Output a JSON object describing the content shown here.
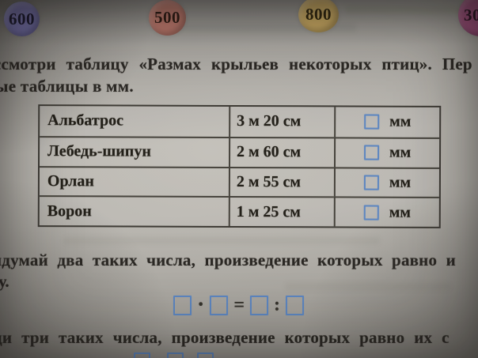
{
  "answer_circles": [
    {
      "label": "600",
      "fill": "#6e6aa2"
    },
    {
      "label": "500",
      "fill": "#c07a6e"
    },
    {
      "label": "800",
      "fill": "#cfae64"
    },
    {
      "label": "30",
      "fill": "#a45080"
    }
  ],
  "intro": {
    "line1": "ссмотри таблицу «Размах крыльев некоторых птиц». Пер",
    "line2": "ые таблицы в мм."
  },
  "wingspan_table": {
    "rows": [
      {
        "bird": "Альбатрос",
        "wingspan": "3 м 20 см",
        "unit": "мм"
      },
      {
        "bird": "Лебедь-шипун",
        "wingspan": "2 м 60 см",
        "unit": "мм"
      },
      {
        "bird": "Орлан",
        "wingspan": "2 м 55 см",
        "unit": "мм"
      },
      {
        "bird": "Ворон",
        "wingspan": "1 м 25 см",
        "unit": "мм"
      }
    ]
  },
  "task_two_numbers": {
    "line1": "идумай два таких числа, произведение которых равно и",
    "line2": "у.",
    "equation": {
      "multiply_sign": "·",
      "equals_sign": "=",
      "divide_sign": ":"
    }
  },
  "task_three_numbers": {
    "line1": "ди три таких числа, произведение которых равно их с"
  },
  "colors": {
    "answer_box_blue": "#5d86c0",
    "ink": "#2b2824",
    "table_border": "#3e3b35"
  }
}
